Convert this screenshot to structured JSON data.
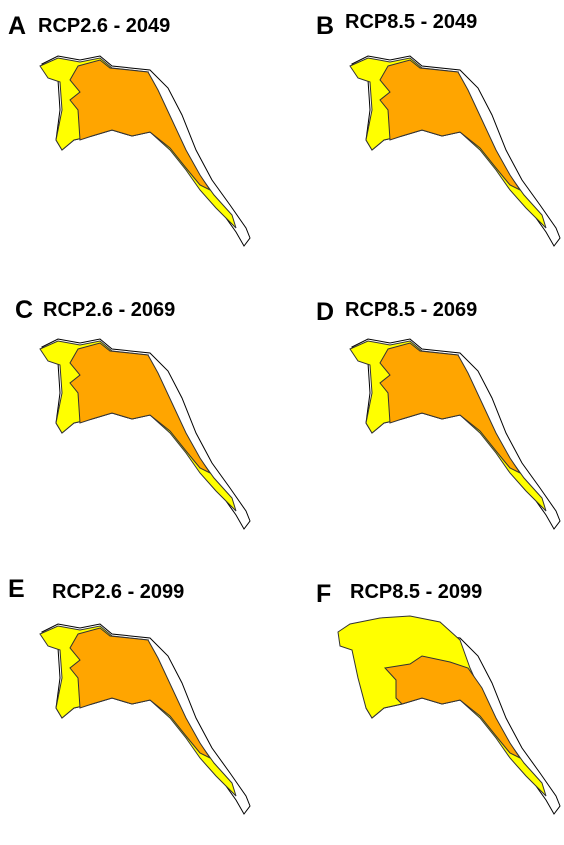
{
  "panels": [
    {
      "letter": "A",
      "title": "RCP2.6 - 2049"
    },
    {
      "letter": "B",
      "title": "RCP8.5 - 2049"
    },
    {
      "letter": "C",
      "title": "RCP2.6 - 2069"
    },
    {
      "letter": "D",
      "title": "RCP8.5 - 2069"
    },
    {
      "letter": "E",
      "title": "RCP2.6 - 2099"
    },
    {
      "letter": "F",
      "title": "RCP8.5 - 2099"
    }
  ]
}
